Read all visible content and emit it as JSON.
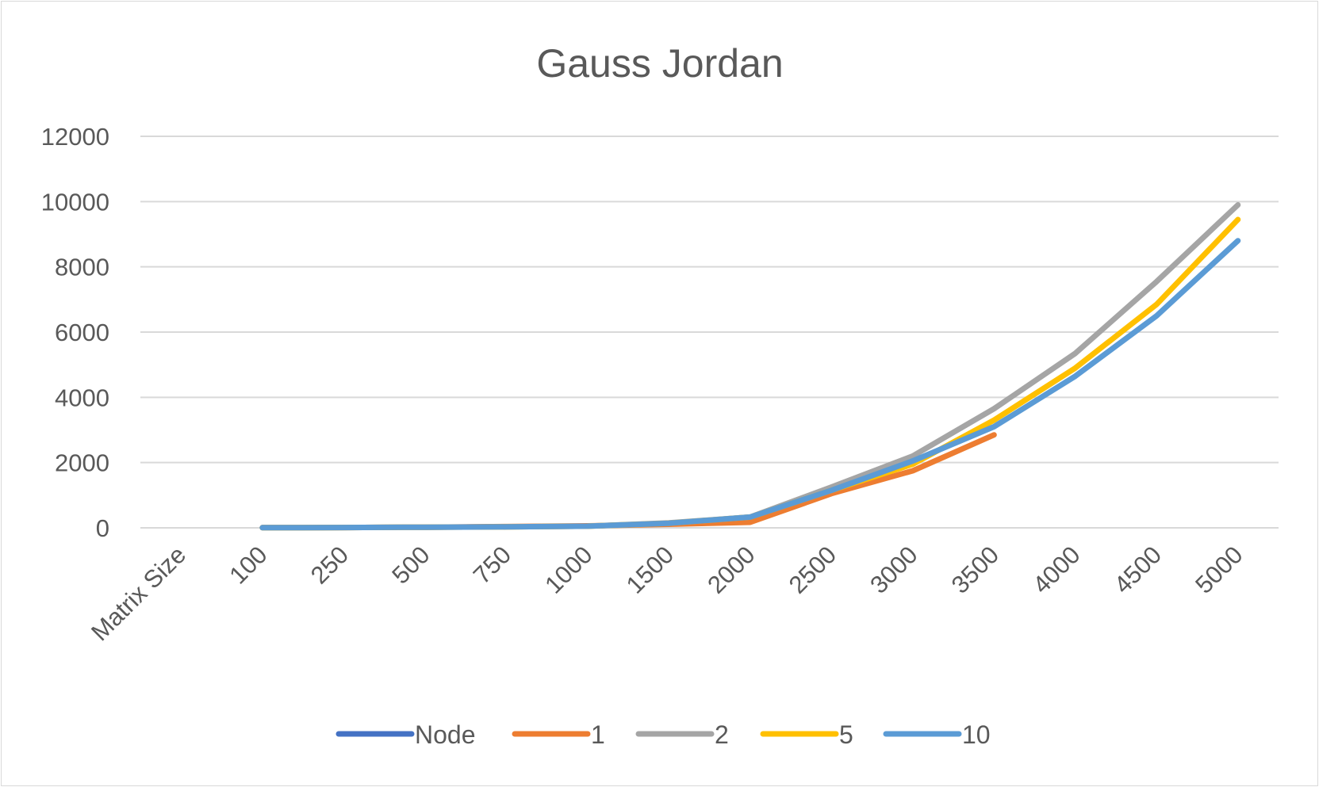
{
  "chart_data": {
    "type": "line",
    "title": "Gauss Jordan",
    "xlabel": "",
    "ylabel": "",
    "categories": [
      "Matrix Size",
      "100",
      "250",
      "500",
      "750",
      "1000",
      "1500",
      "2000",
      "2500",
      "3000",
      "3500",
      "4000",
      "4500",
      "5000"
    ],
    "yticks": [
      "0",
      "2000",
      "4000",
      "6000",
      "8000",
      "10000",
      "12000"
    ],
    "ylim": [
      0,
      12000
    ],
    "grid": true,
    "legend_position": "bottom",
    "series": [
      {
        "name": "Node",
        "color": "#4472c4",
        "values": [
          null,
          null,
          null,
          null,
          null,
          null,
          null,
          null,
          null,
          null,
          null,
          null,
          null,
          null
        ]
      },
      {
        "name": "1",
        "color": "#ed7d31",
        "values": [
          null,
          5,
          10,
          20,
          40,
          60,
          110,
          170,
          1050,
          1750,
          2850,
          null,
          null,
          null
        ]
      },
      {
        "name": "2",
        "color": "#a5a5a5",
        "values": [
          null,
          5,
          10,
          20,
          30,
          50,
          150,
          330,
          1250,
          2200,
          3650,
          5350,
          7550,
          9900
        ]
      },
      {
        "name": "5",
        "color": "#ffc000",
        "values": [
          null,
          5,
          10,
          20,
          30,
          50,
          140,
          330,
          1150,
          1950,
          3300,
          4900,
          6850,
          9450
        ]
      },
      {
        "name": "10",
        "color": "#5b9bd5",
        "values": [
          null,
          5,
          10,
          20,
          30,
          50,
          140,
          330,
          1150,
          2050,
          3100,
          4650,
          6500,
          8800
        ]
      }
    ]
  }
}
